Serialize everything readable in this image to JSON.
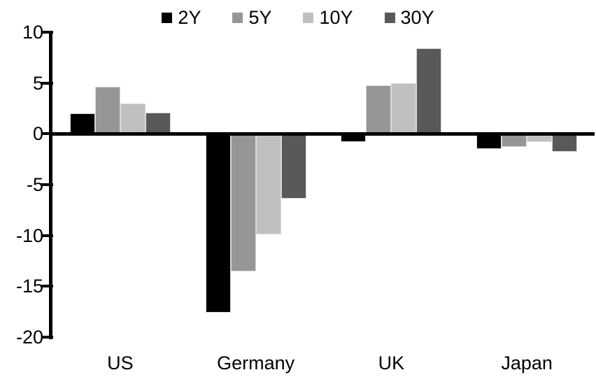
{
  "chart_data": {
    "type": "bar",
    "title": "",
    "xlabel": "",
    "ylabel": "",
    "categories": [
      "US",
      "Germany",
      "UK",
      "Japan"
    ],
    "series": [
      {
        "name": "2Y",
        "color": "#000000",
        "values": [
          2.0,
          -17.6,
          -0.8,
          -1.5
        ]
      },
      {
        "name": "5Y",
        "color": "#969696",
        "values": [
          4.6,
          -13.5,
          4.8,
          -1.3
        ]
      },
      {
        "name": "10Y",
        "color": "#C0C0C0",
        "values": [
          3.0,
          -9.9,
          5.0,
          -0.8
        ]
      },
      {
        "name": "30Y",
        "color": "#595959",
        "values": [
          2.1,
          -6.4,
          8.4,
          -1.8
        ]
      }
    ],
    "ylim": [
      -20,
      10
    ],
    "yticks": [
      10,
      5,
      0,
      -5,
      -10,
      -15,
      -20
    ],
    "grid": false,
    "legend_position": "top",
    "axis_color": "#000000",
    "background_color": "#ffffff"
  }
}
